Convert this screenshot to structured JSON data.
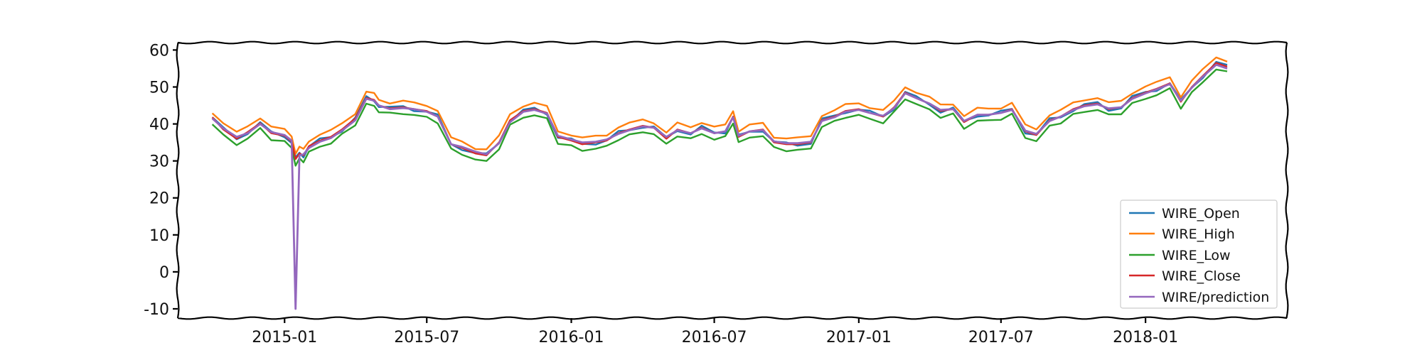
{
  "chart_data": {
    "type": "line",
    "title": "",
    "xlabel": "",
    "ylabel": "",
    "x_ticks": [
      "2015-01",
      "2015-07",
      "2016-01",
      "2016-07",
      "2017-01",
      "2017-07",
      "2018-01"
    ],
    "y_ticks": [
      -10,
      0,
      10,
      20,
      30,
      40,
      50,
      60
    ],
    "xlim": [
      "2014-08-18",
      "2018-06-30"
    ],
    "ylim": [
      -12.5,
      62
    ],
    "grid": false,
    "legend_position": "lower-right",
    "colors": {
      "WIRE_Open": "#1f77b4",
      "WIRE_High": "#ff7f0e",
      "WIRE_Low": "#2ca02c",
      "WIRE_Close": "#d62728",
      "WIRE/prediction": "#9467bd"
    },
    "series": [
      {
        "name": "WIRE_Open"
      },
      {
        "name": "WIRE_High"
      },
      {
        "name": "WIRE_Low"
      },
      {
        "name": "WIRE_Close"
      },
      {
        "name": "WIRE/prediction"
      }
    ],
    "x": [
      "2014-10-01",
      "2014-10-15",
      "2014-11-01",
      "2014-11-15",
      "2014-12-01",
      "2014-12-15",
      "2015-01-01",
      "2015-01-10",
      "2015-01-15",
      "2015-01-20",
      "2015-01-25",
      "2015-02-01",
      "2015-02-15",
      "2015-03-01",
      "2015-03-15",
      "2015-04-01",
      "2015-04-15",
      "2015-04-25",
      "2015-05-01",
      "2015-05-15",
      "2015-06-01",
      "2015-06-15",
      "2015-07-01",
      "2015-07-15",
      "2015-08-01",
      "2015-08-15",
      "2015-09-01",
      "2015-09-15",
      "2015-10-01",
      "2015-10-15",
      "2015-11-01",
      "2015-11-15",
      "2015-12-01",
      "2015-12-15",
      "2016-01-01",
      "2016-01-15",
      "2016-02-01",
      "2016-02-15",
      "2016-03-01",
      "2016-03-15",
      "2016-04-01",
      "2016-04-15",
      "2016-05-01",
      "2016-05-15",
      "2016-06-01",
      "2016-06-15",
      "2016-07-01",
      "2016-07-15",
      "2016-07-25",
      "2016-08-01",
      "2016-08-15",
      "2016-09-01",
      "2016-09-15",
      "2016-10-01",
      "2016-10-15",
      "2016-11-01",
      "2016-11-15",
      "2016-12-01",
      "2016-12-15",
      "2017-01-01",
      "2017-01-15",
      "2017-02-01",
      "2017-02-15",
      "2017-03-01",
      "2017-03-15",
      "2017-04-01",
      "2017-04-15",
      "2017-05-01",
      "2017-05-15",
      "2017-06-01",
      "2017-06-15",
      "2017-07-01",
      "2017-07-15",
      "2017-08-01",
      "2017-08-15",
      "2017-09-01",
      "2017-09-15",
      "2017-10-01",
      "2017-10-15",
      "2017-11-01",
      "2017-11-15",
      "2017-12-01",
      "2017-12-15",
      "2018-01-01",
      "2018-01-15",
      "2018-02-01",
      "2018-02-15",
      "2018-03-01",
      "2018-03-15",
      "2018-04-01",
      "2018-04-15"
    ],
    "close": [
      41.8,
      38.5,
      36,
      37.8,
      40.2,
      37.5,
      36.8,
      35.2,
      30.5,
      32,
      31.5,
      34,
      35.5,
      36.5,
      38.5,
      41.5,
      47,
      46.5,
      45,
      44.2,
      44.5,
      44,
      43.5,
      42,
      34.5,
      33.5,
      32,
      31.5,
      35,
      41,
      43.5,
      44,
      43,
      36.5,
      35.5,
      34.5,
      35,
      35.5,
      37.5,
      38.5,
      39.5,
      39,
      36,
      38.5,
      37.5,
      39,
      37.5,
      38,
      42,
      36.5,
      38,
      38.5,
      35,
      34.5,
      34.5,
      35,
      41,
      42,
      43.5,
      44,
      43,
      42,
      44.5,
      48.5,
      47,
      45.5,
      43.5,
      44,
      40.5,
      42.5,
      42.5,
      43,
      44,
      38,
      37,
      41,
      42,
      44,
      45,
      45.5,
      44,
      44.5,
      47,
      48.5,
      49.5,
      51,
      46,
      50,
      53,
      56.5,
      55.5
    ],
    "prediction": [
      41.5,
      38.8,
      36.5,
      37.5,
      40,
      37.8,
      37,
      35.5,
      -10,
      31.5,
      31.8,
      33.5,
      35.2,
      36.2,
      38.2,
      41,
      46.8,
      46.3,
      45,
      44,
      44.3,
      44,
      43.3,
      42,
      34.5,
      33.8,
      32.5,
      31.8,
      34.8,
      40.5,
      43.3,
      43.8,
      42.8,
      36.8,
      35.8,
      35,
      35.2,
      35.8,
      37.3,
      38.3,
      39.3,
      39,
      36.5,
      38.3,
      37.5,
      38.8,
      37.5,
      38,
      41.8,
      36.8,
      38,
      38.3,
      35.3,
      34.8,
      34.8,
      35.2,
      40.8,
      41.8,
      43.3,
      43.8,
      43,
      42.2,
      44.3,
      48.3,
      47,
      45.5,
      43.8,
      44,
      40.8,
      42.5,
      42.5,
      43,
      43.8,
      38.2,
      37.3,
      40.8,
      42,
      43.8,
      44.8,
      45.3,
      44.2,
      44.5,
      46.8,
      48.3,
      49.3,
      50.8,
      46.3,
      49.8,
      52.8,
      56,
      55
    ]
  },
  "legend": {
    "items": [
      {
        "label": "WIRE_Open",
        "color": "#1f77b4"
      },
      {
        "label": "WIRE_High",
        "color": "#ff7f0e"
      },
      {
        "label": "WIRE_Low",
        "color": "#2ca02c"
      },
      {
        "label": "WIRE_Close",
        "color": "#d62728"
      },
      {
        "label": "WIRE/prediction",
        "color": "#9467bd"
      }
    ]
  }
}
